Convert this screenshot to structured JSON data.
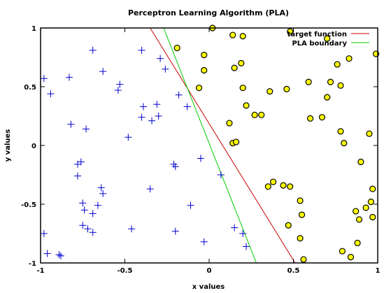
{
  "chart_data": {
    "type": "scatter",
    "title": "Perceptron Learning Algorithm (PLA)",
    "xlabel": "x values",
    "ylabel": "y values",
    "xlim": [
      -1,
      1
    ],
    "ylim": [
      -1,
      1
    ],
    "grid": false,
    "legend_position": "top-right",
    "x_ticks": [
      {
        "value": -1,
        "label": "-1"
      },
      {
        "value": -0.5,
        "label": "-0.5"
      },
      {
        "value": 0,
        "label": "0"
      },
      {
        "value": 0.5,
        "label": "0.5"
      },
      {
        "value": 1,
        "label": "1"
      }
    ],
    "y_ticks": [
      {
        "value": -1,
        "label": "-1"
      },
      {
        "value": -0.5,
        "label": "-0.5"
      },
      {
        "value": 0,
        "label": "0"
      },
      {
        "value": 0.5,
        "label": "0.5"
      },
      {
        "value": 1,
        "label": "1"
      }
    ],
    "lines": [
      {
        "name": "target function",
        "color": "#cc0000",
        "points": [
          [
            -0.35,
            1.0
          ],
          [
            0.51,
            -1.0
          ]
        ]
      },
      {
        "name": "PLA boundary",
        "color": "#00cc00",
        "points": [
          [
            -0.27,
            1.0
          ],
          [
            0.28,
            -1.0
          ]
        ]
      }
    ],
    "series": [
      {
        "marker": "plus",
        "color": "#0000cc",
        "points": [
          [
            -0.98,
            0.57
          ],
          [
            -0.94,
            0.44
          ],
          [
            -0.98,
            -0.75
          ],
          [
            -0.96,
            -0.92
          ],
          [
            -0.89,
            -0.93
          ],
          [
            -0.88,
            -0.94
          ],
          [
            -0.83,
            0.58
          ],
          [
            -0.82,
            0.18
          ],
          [
            -0.78,
            -0.16
          ],
          [
            -0.78,
            -0.26
          ],
          [
            -0.76,
            -0.14
          ],
          [
            -0.75,
            -0.49
          ],
          [
            -0.74,
            -0.55
          ],
          [
            -0.75,
            -0.68
          ],
          [
            -0.72,
            -0.71
          ],
          [
            -0.69,
            -0.58
          ],
          [
            -0.69,
            -0.74
          ],
          [
            -0.66,
            -0.51
          ],
          [
            -0.73,
            0.14
          ],
          [
            -0.69,
            0.81
          ],
          [
            -0.63,
            0.63
          ],
          [
            -0.64,
            -0.36
          ],
          [
            -0.63,
            -0.41
          ],
          [
            -0.54,
            0.47
          ],
          [
            -0.53,
            0.52
          ],
          [
            -0.48,
            0.07
          ],
          [
            -0.46,
            -0.71
          ],
          [
            -0.4,
            0.81
          ],
          [
            -0.39,
            0.33
          ],
          [
            -0.4,
            0.24
          ],
          [
            -0.34,
            0.21
          ],
          [
            -0.35,
            -0.37
          ],
          [
            -0.31,
            0.35
          ],
          [
            -0.3,
            0.25
          ],
          [
            -0.29,
            0.74
          ],
          [
            -0.26,
            0.65
          ],
          [
            -0.21,
            -0.16
          ],
          [
            -0.2,
            -0.18
          ],
          [
            -0.2,
            -0.73
          ],
          [
            -0.18,
            0.43
          ],
          [
            -0.13,
            0.33
          ],
          [
            -0.11,
            -0.51
          ],
          [
            -0.05,
            -0.11
          ],
          [
            -0.03,
            -0.82
          ],
          [
            0.07,
            -0.25
          ],
          [
            0.15,
            -0.7
          ],
          [
            0.2,
            -0.75
          ],
          [
            0.22,
            -0.86
          ]
        ]
      },
      {
        "marker": "circle",
        "color": "#ffff00",
        "points": [
          [
            0.02,
            1.0
          ],
          [
            -0.19,
            0.83
          ],
          [
            -0.06,
            0.49
          ],
          [
            -0.03,
            0.77
          ],
          [
            -0.03,
            0.64
          ],
          [
            0.14,
            0.94
          ],
          [
            0.2,
            0.93
          ],
          [
            0.15,
            0.66
          ],
          [
            0.19,
            0.7
          ],
          [
            0.2,
            0.49
          ],
          [
            0.22,
            0.34
          ],
          [
            0.27,
            0.26
          ],
          [
            0.31,
            0.26
          ],
          [
            0.36,
            0.46
          ],
          [
            0.46,
            0.48
          ],
          [
            0.48,
            0.97
          ],
          [
            0.12,
            0.19
          ],
          [
            0.14,
            0.02
          ],
          [
            0.16,
            0.03
          ],
          [
            0.35,
            -0.35
          ],
          [
            0.38,
            -0.31
          ],
          [
            0.44,
            -0.34
          ],
          [
            0.48,
            -0.35
          ],
          [
            0.54,
            -0.47
          ],
          [
            0.55,
            -0.59
          ],
          [
            0.47,
            -0.68
          ],
          [
            0.54,
            -0.79
          ],
          [
            0.56,
            -0.97
          ],
          [
            0.59,
            0.54
          ],
          [
            0.6,
            0.23
          ],
          [
            0.67,
            0.24
          ],
          [
            0.7,
            0.41
          ],
          [
            0.7,
            0.91
          ],
          [
            0.72,
            0.54
          ],
          [
            0.76,
            0.69
          ],
          [
            0.78,
            0.51
          ],
          [
            0.78,
            0.12
          ],
          [
            0.8,
            0.02
          ],
          [
            0.83,
            0.74
          ],
          [
            0.79,
            -0.9
          ],
          [
            0.84,
            -0.95
          ],
          [
            0.87,
            -0.56
          ],
          [
            0.88,
            -0.83
          ],
          [
            0.89,
            -0.63
          ],
          [
            0.9,
            -0.14
          ],
          [
            0.93,
            -0.53
          ],
          [
            0.95,
            0.1
          ],
          [
            0.96,
            -0.48
          ],
          [
            0.97,
            -0.37
          ],
          [
            0.97,
            -0.61
          ],
          [
            0.99,
            0.78
          ]
        ]
      }
    ]
  }
}
